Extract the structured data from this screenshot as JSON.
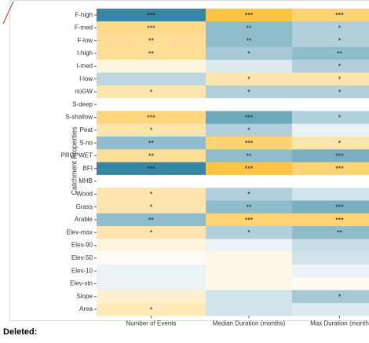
{
  "chart_data": {
    "type": "heatmap",
    "y_label": "Catchment Properties",
    "rows": [
      "F-high",
      "F-med",
      "F-low",
      "I-high",
      "I-med",
      "I-low",
      "noGW",
      "S-deep",
      "S-shallow",
      "Peat",
      "S-no",
      "PROPWET",
      "BFI",
      "MHB",
      "Wood",
      "Grass",
      "Arable",
      "Elev-max",
      "Elev-90",
      "Elev-50",
      "Elev-10",
      "Elev-stn",
      "Slope",
      "Area"
    ],
    "columns": [
      "Number of Events",
      "Median Duration (months)",
      "Max Duration (month"
    ],
    "zlim": [
      -1,
      1
    ],
    "colors": {
      "negative": "#1f7a99",
      "neutral": "#ffffff",
      "positive": "#fdb515"
    },
    "values": [
      [
        -0.9,
        0.8,
        0.6
      ],
      [
        0.5,
        -0.5,
        -0.35
      ],
      [
        0.45,
        -0.5,
        -0.35
      ],
      [
        0.45,
        -0.4,
        -0.5
      ],
      [
        0.15,
        -0.15,
        -0.35
      ],
      [
        -0.3,
        0.35,
        0.35
      ],
      [
        0.35,
        -0.35,
        -0.35
      ],
      [
        0,
        0,
        0
      ],
      [
        0.55,
        -0.65,
        -0.35
      ],
      [
        0.35,
        -0.35,
        -0.1
      ],
      [
        -0.5,
        0.6,
        0.35
      ],
      [
        0.45,
        -0.5,
        -0.6
      ],
      [
        -0.9,
        0.8,
        0.6
      ],
      [
        0,
        0,
        0
      ],
      [
        0.35,
        -0.35,
        -0.2
      ],
      [
        0.35,
        -0.5,
        -0.6
      ],
      [
        -0.5,
        0.6,
        0.6
      ],
      [
        0.35,
        -0.35,
        -0.5
      ],
      [
        0.15,
        -0.1,
        -0.25
      ],
      [
        0.05,
        0.1,
        -0.2
      ],
      [
        -0.1,
        0.1,
        -0.1
      ],
      [
        -0.1,
        0.1,
        0.05
      ],
      [
        0.2,
        -0.2,
        -0.4
      ],
      [
        0.3,
        -0.2,
        -0.15
      ]
    ],
    "value_labels": [
      [
        "***",
        "***",
        "***"
      ],
      [
        "***",
        "**",
        "*"
      ],
      [
        "**",
        "**",
        "*"
      ],
      [
        "**",
        "*",
        "**"
      ],
      [
        null,
        null,
        "*"
      ],
      [
        null,
        "*",
        "*"
      ],
      [
        "*",
        "*",
        "*"
      ],
      [
        null,
        null,
        null
      ],
      [
        "***",
        "***",
        "*"
      ],
      [
        "*",
        "*",
        null
      ],
      [
        "**",
        "***",
        "*"
      ],
      [
        "**",
        "**",
        "***"
      ],
      [
        "***",
        "***",
        "***"
      ],
      [
        null,
        null,
        null
      ],
      [
        "*",
        "*",
        null
      ],
      [
        "*",
        "**",
        "***"
      ],
      [
        "**",
        "***",
        "***"
      ],
      [
        "*",
        "*",
        "**"
      ],
      [
        null,
        null,
        null
      ],
      [
        null,
        null,
        null
      ],
      [
        null,
        null,
        null
      ],
      [
        null,
        null,
        null
      ],
      [
        null,
        null,
        "*"
      ],
      [
        "*",
        null,
        null
      ]
    ]
  },
  "document": {
    "deleted_label": "Deleted:"
  }
}
